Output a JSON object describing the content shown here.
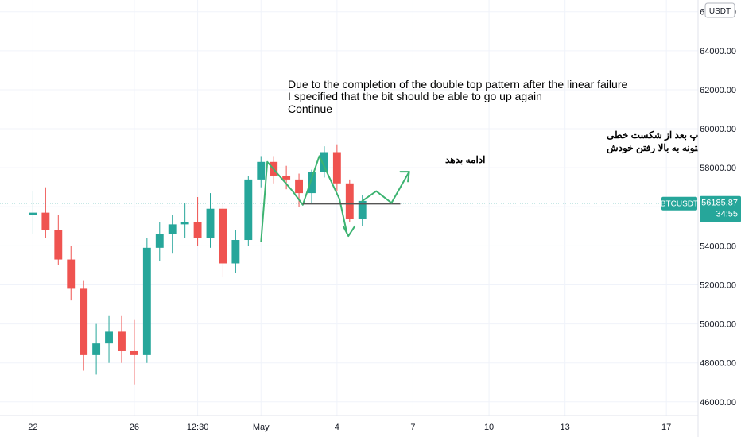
{
  "chart_data": {
    "type": "candlestick",
    "currency": "USDT",
    "symbol": "BTCUSDT",
    "last_price": "56185.87",
    "countdown": "34:55",
    "y_ticks": [
      "66000.00",
      "64000.00",
      "62000.00",
      "60000.00",
      "58000.00",
      "56000.00",
      "54000.00",
      "52000.00",
      "50000.00",
      "48000.00",
      "46000.00"
    ],
    "y_values": [
      66000,
      64000,
      62000,
      60000,
      58000,
      56000,
      54000,
      52000,
      50000,
      48000,
      46000
    ],
    "ylim": [
      45300,
      66600
    ],
    "x_ticks": [
      {
        "label": "22",
        "index": 0
      },
      {
        "label": "26",
        "index": 8
      },
      {
        "label": "12:30",
        "index": 13
      },
      {
        "label": "May",
        "index": 18
      },
      {
        "label": "4",
        "index": 24
      },
      {
        "label": "7",
        "index": 30
      },
      {
        "label": "10",
        "index": 36
      },
      {
        "label": "13",
        "index": 42
      },
      {
        "label": "17",
        "index": 50
      }
    ],
    "x_index_range": [
      -2.6,
      52.5
    ],
    "price_line": 56185.87,
    "candles_ohlc": [
      [
        55600,
        56800,
        54600,
        55700
      ],
      [
        55700,
        57000,
        54400,
        54800
      ],
      [
        54800,
        55600,
        53000,
        53300
      ],
      [
        53300,
        54000,
        51200,
        51800
      ],
      [
        51800,
        52200,
        47600,
        48400
      ],
      [
        48400,
        50000,
        47400,
        49000
      ],
      [
        49000,
        50400,
        48000,
        49600
      ],
      [
        49600,
        50400,
        48000,
        48600
      ],
      [
        48600,
        50200,
        46900,
        48400
      ],
      [
        48400,
        54400,
        48000,
        53900
      ],
      [
        53900,
        55200,
        53200,
        54600
      ],
      [
        54600,
        55600,
        53600,
        55100
      ],
      [
        55100,
        56200,
        54400,
        55200
      ],
      [
        55200,
        56500,
        54000,
        54400
      ],
      [
        54400,
        56700,
        53900,
        55900
      ],
      [
        55900,
        56200,
        52400,
        53100
      ],
      [
        53100,
        54800,
        52600,
        54300
      ],
      [
        54300,
        57600,
        54000,
        57400
      ],
      [
        57400,
        58600,
        57000,
        58300
      ],
      [
        58300,
        58600,
        57200,
        57600
      ],
      [
        57600,
        58100,
        56900,
        57400
      ],
      [
        57400,
        57700,
        56000,
        56700
      ],
      [
        56700,
        57900,
        56200,
        57800
      ],
      [
        57800,
        59100,
        57500,
        58800
      ],
      [
        58800,
        59200,
        56800,
        57200
      ],
      [
        57200,
        57400,
        55200,
        55400
      ],
      [
        55400,
        56600,
        55000,
        56300
      ]
    ],
    "annotation_lines": [
      [
        [
          18,
          54200
        ],
        [
          18.5,
          58300
        ],
        [
          20.5,
          56800
        ],
        [
          21.3,
          56100
        ],
        [
          22.6,
          58600
        ],
        [
          24.2,
          56400
        ],
        [
          24.8,
          54600
        ]
      ],
      [
        [
          21.3,
          56150
        ],
        [
          29,
          56150
        ]
      ]
    ],
    "annotation_arrows": [
      [
        [
          24.5,
          55000
        ],
        [
          24.9,
          54500
        ],
        [
          25.4,
          55000
        ]
      ],
      [
        [
          26,
          56300
        ],
        [
          27.1,
          56800
        ],
        [
          28.3,
          56200
        ],
        [
          29.7,
          57800
        ]
      ],
      [
        [
          29.0,
          57800
        ],
        [
          29.7,
          57800
        ],
        [
          29.6,
          57300
        ]
      ]
    ],
    "annotations": {
      "english": [
        "Due to the completion of the double top pattern after the linear failure",
        "I specified that the bit should be able to go up again",
        "Continue"
      ],
      "persian": [
        "با توجه به تکمیل الگوی دابل تاپ بعد از شکست خطی",
        "که مشخص کردم بیت دوباره باید بتونه به بالا رفتن خودش",
        "ادامه بدهد"
      ]
    },
    "colors": {
      "up": "#26a69a",
      "down": "#ef5350",
      "drawing": "#3cb371",
      "price_tag": "#26a69a",
      "price_line": "#26a69a",
      "grid": "#f0f3fa",
      "axis_text": "#131722"
    }
  }
}
